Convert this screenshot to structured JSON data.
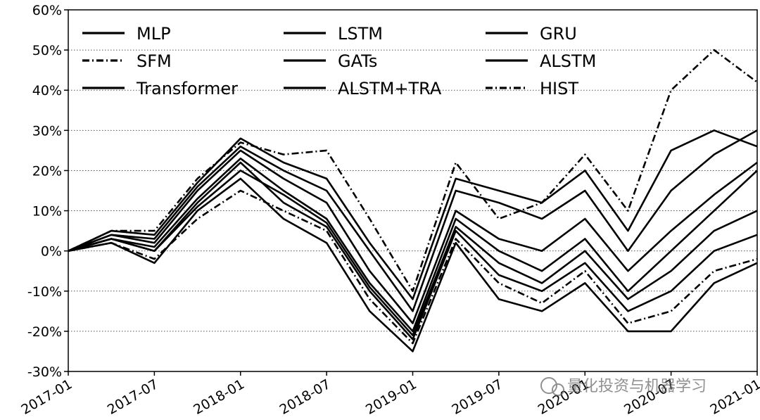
{
  "watermark": {
    "text": "量化投资与机器学习"
  },
  "chart_data": {
    "type": "line",
    "title": "",
    "xlabel": "",
    "ylabel": "",
    "grid": "horizontal dotted",
    "legend_position": "upper-left, 3 columns",
    "x_ticks": [
      "2017-01",
      "2017-07",
      "2018-01",
      "2018-07",
      "2019-01",
      "2019-07",
      "2020-01",
      "2020-07",
      "2021-01"
    ],
    "y_ticks": [
      "60%",
      "50%",
      "40%",
      "30%",
      "20%",
      "10%",
      "0%",
      "-10%",
      "-20%",
      "-30%"
    ],
    "ylim": [
      -30,
      60
    ],
    "xlim": [
      "2017-01",
      "2021-01"
    ],
    "x": [
      "2017-01",
      "2017-04",
      "2017-07",
      "2017-10",
      "2018-01",
      "2018-04",
      "2018-07",
      "2018-10",
      "2019-01",
      "2019-04",
      "2019-07",
      "2019-10",
      "2020-01",
      "2020-04",
      "2020-07",
      "2020-10",
      "2021-01"
    ],
    "series": [
      {
        "name": "MLP",
        "style": "solid",
        "values": [
          0,
          2,
          -3,
          10,
          18,
          8,
          2,
          -15,
          -25,
          2,
          -12,
          -15,
          -8,
          -20,
          -20,
          -8,
          -3
        ]
      },
      {
        "name": "LSTM",
        "style": "solid",
        "values": [
          0,
          3,
          0,
          12,
          22,
          12,
          6,
          -10,
          -22,
          5,
          -6,
          -10,
          -3,
          -15,
          -10,
          0,
          4
        ]
      },
      {
        "name": "GRU",
        "style": "solid",
        "values": [
          0,
          4,
          2,
          15,
          25,
          18,
          12,
          -5,
          -18,
          10,
          3,
          0,
          8,
          -5,
          5,
          14,
          22
        ]
      },
      {
        "name": "SFM",
        "style": "dashdot",
        "values": [
          0,
          2,
          -2,
          8,
          15,
          10,
          5,
          -12,
          -23,
          3,
          -8,
          -13,
          -5,
          -18,
          -15,
          -5,
          -2
        ]
      },
      {
        "name": "GATs",
        "style": "solid",
        "values": [
          0,
          3,
          1,
          13,
          23,
          15,
          8,
          -8,
          -20,
          8,
          0,
          -5,
          3,
          -10,
          0,
          10,
          20
        ]
      },
      {
        "name": "ALSTM",
        "style": "solid",
        "values": [
          0,
          4,
          3,
          16,
          26,
          20,
          15,
          0,
          -15,
          15,
          12,
          8,
          15,
          0,
          15,
          24,
          30
        ]
      },
      {
        "name": "Transformer",
        "style": "solid",
        "values": [
          0,
          3,
          0,
          11,
          20,
          14,
          7,
          -9,
          -21,
          6,
          -3,
          -8,
          0,
          -12,
          -5,
          5,
          10
        ]
      },
      {
        "name": "ALSTM+TRA",
        "style": "solid",
        "values": [
          0,
          5,
          4,
          17,
          28,
          22,
          18,
          2,
          -12,
          18,
          15,
          12,
          20,
          5,
          25,
          30,
          26
        ]
      },
      {
        "name": "HIST",
        "style": "dashdot",
        "values": [
          0,
          5,
          5,
          18,
          27,
          24,
          25,
          8,
          -10,
          22,
          8,
          12,
          24,
          10,
          40,
          50,
          42
        ]
      }
    ]
  }
}
